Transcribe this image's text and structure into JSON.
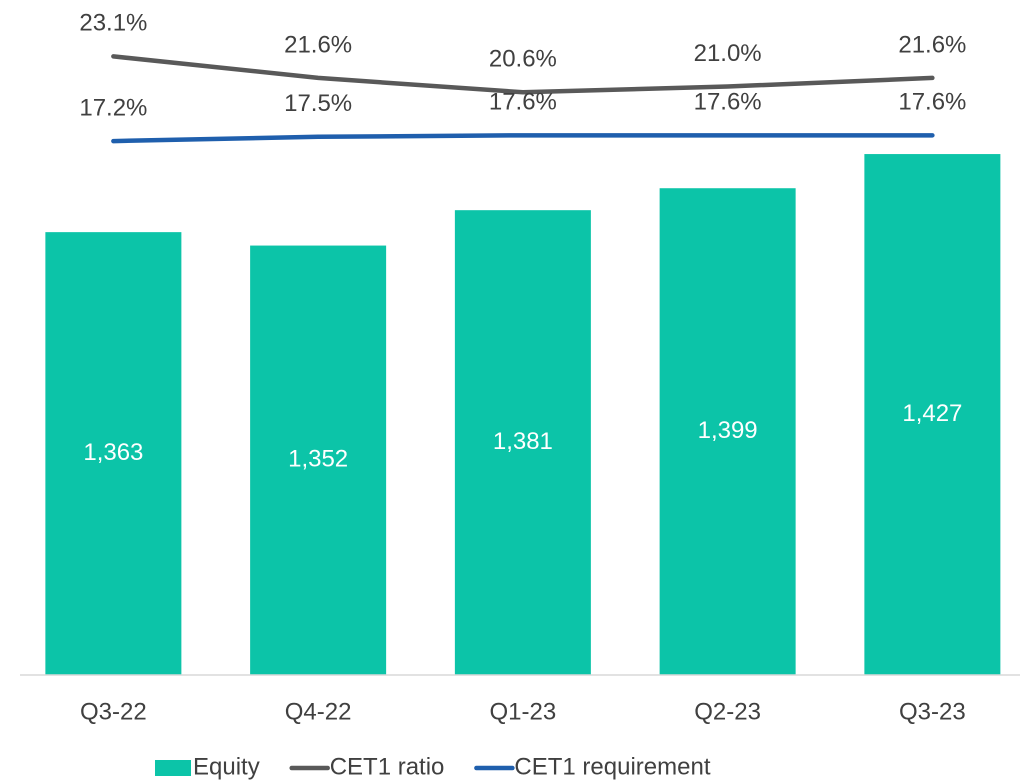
{
  "chart_data": {
    "type": "bar_line",
    "categories": [
      "Q3-22",
      "Q4-22",
      "Q1-23",
      "Q2-23",
      "Q3-23"
    ],
    "ylim": [
      1000,
      1500
    ],
    "y2lim": [
      -20,
      22.5
    ],
    "legend": "bottom",
    "series": [
      {
        "name": "Equity",
        "type": "bar",
        "color": "#0cc4a8",
        "values": [
          1363,
          1352,
          1381,
          1399,
          1427
        ],
        "value_labels": [
          "1,363",
          "1,352",
          "1,381",
          "1,399",
          "1,427"
        ]
      },
      {
        "name": "CET1 ratio",
        "type": "line",
        "axis": "y2",
        "color": "#595959",
        "values": [
          23.1,
          21.6,
          20.6,
          21.0,
          21.6
        ],
        "value_labels": [
          "23.1%",
          "21.6%",
          "20.6%",
          "21.0%",
          "21.6%"
        ]
      },
      {
        "name": "CET1 requirement",
        "type": "line",
        "axis": "y2",
        "color": "#1f5fad",
        "values": [
          17.2,
          17.5,
          17.6,
          17.6,
          17.6
        ],
        "value_labels": [
          "17.2%",
          "17.5%",
          "17.6%",
          "17.6%",
          "17.6%"
        ]
      }
    ]
  }
}
